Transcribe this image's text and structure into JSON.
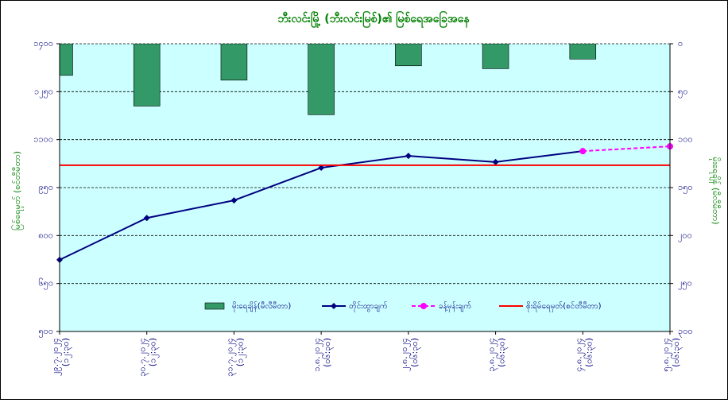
{
  "chart_data": {
    "type": "bar_line",
    "title": "ဘီးလင်းမြို့ (ဘီးလင်းမြစ်)၏ မြစ်ရေအခြေအနေ",
    "ylabel": "မြစ်ရေမှတ် (စင်တီမီတာ)",
    "y2label": "မိုးရေချိန် (မီလီမီတာ)",
    "categories": [
      [
        "၂၉.၇.၂၀၂၄",
        "(၁၂:၃၀)"
      ],
      [
        "၃၀.၇.၂၀၂၄",
        "(၁၂:၃၀)"
      ],
      [
        "၃၁.၇.၂၀၂၄",
        "(၁၂:၃၀)"
      ],
      [
        "၁.၈.၂၀၂၄",
        "(၀၆:၃၀)"
      ],
      [
        "၂.၈.၂၀၂၄",
        "(၀၆:၃၀)"
      ],
      [
        "၃.၈.၂၀၂၄",
        "(၀၆:၃၀)"
      ],
      [
        "၄.၈.၂၀၂၄",
        "(၀၆:၃၀)"
      ],
      [
        "၅.၈.၂၀၂၄",
        "(၀၆:၃၀)"
      ]
    ],
    "ylim": [
      500,
      1400
    ],
    "yticks": [
      {
        "value": 500,
        "label": "၅၀၀"
      },
      {
        "value": 650,
        "label": "၆၅၀"
      },
      {
        "value": 800,
        "label": "၈၀၀"
      },
      {
        "value": 950,
        "label": "၉၅၀"
      },
      {
        "value": 1100,
        "label": "၁၁၀၀"
      },
      {
        "value": 1250,
        "label": "၁၂၅၀"
      },
      {
        "value": 1400,
        "label": "၁၄၀၀"
      }
    ],
    "y2lim": [
      300,
      0
    ],
    "y2ticks": [
      {
        "value": 300,
        "label": "၃၀၀"
      },
      {
        "value": 250,
        "label": "၂၅၀"
      },
      {
        "value": 200,
        "label": "၂၀၀"
      },
      {
        "value": 150,
        "label": "၁၅၀"
      },
      {
        "value": 100,
        "label": "၁၀၀"
      },
      {
        "value": 50,
        "label": "၅၀"
      },
      {
        "value": 0,
        "label": "၀"
      }
    ],
    "grid": true,
    "series": [
      {
        "name": "မိုးရေချိန်(မီလီမီတာ)",
        "kind": "bar",
        "axis": "y2",
        "color": "#339966",
        "values": [
          33,
          65,
          38,
          74,
          23,
          26,
          16,
          null
        ]
      },
      {
        "name": "တိုင်းထွာချက်",
        "kind": "line",
        "color": "#000080",
        "values": [
          724,
          855,
          910,
          1012,
          1049,
          1030,
          1064,
          null
        ]
      },
      {
        "name": "ခန့်မှန်းချက်",
        "kind": "dashed",
        "color": "#ff00ff",
        "values": [
          null,
          null,
          null,
          null,
          null,
          null,
          1064,
          1079
        ]
      },
      {
        "name": "စိုးရိမ်ရေမှတ်(စင်တီမီတာ)",
        "kind": "hline",
        "color": "#ff0000",
        "value": 1020
      }
    ]
  }
}
